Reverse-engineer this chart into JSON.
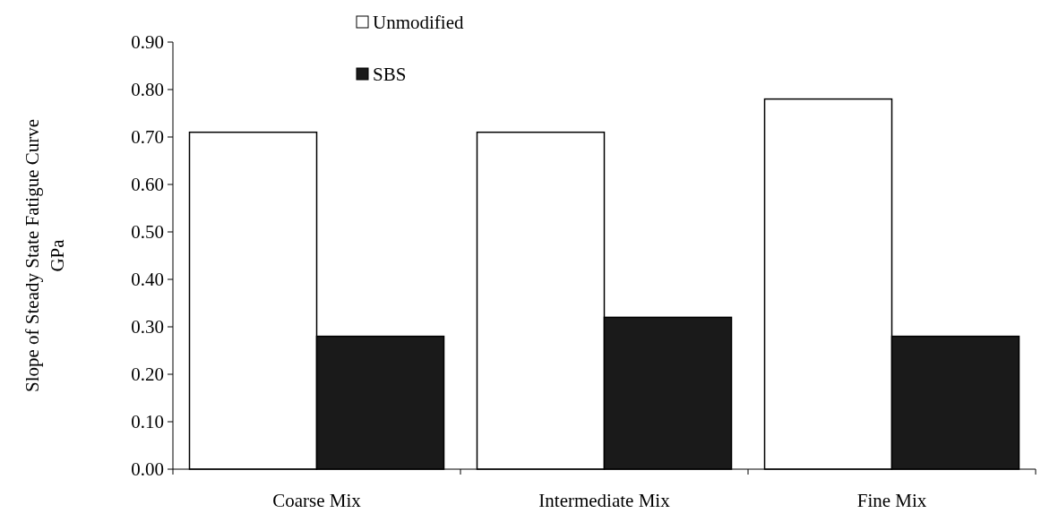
{
  "chart_data": {
    "type": "bar",
    "ylabel": "Slope of Steady State Fatigue Curve\nGPa",
    "categories": [
      "Coarse Mix",
      "Intermediate Mix",
      "Fine Mix"
    ],
    "series": [
      {
        "name": "Unmodified",
        "color": "#ffffff",
        "values": [
          0.71,
          0.71,
          0.78
        ]
      },
      {
        "name": "SBS",
        "color": "#1a1a1a",
        "values": [
          0.28,
          0.32,
          0.28
        ]
      }
    ],
    "ylim": [
      0,
      0.9
    ],
    "yticks": [
      {
        "value": 0,
        "label": "0.00"
      },
      {
        "value": 0.1,
        "label": "0.10"
      },
      {
        "value": 0.2,
        "label": "0.20"
      },
      {
        "value": 0.3,
        "label": "0.30"
      },
      {
        "value": 0.4,
        "label": "0.40"
      },
      {
        "value": 0.5,
        "label": "0.50"
      },
      {
        "value": 0.6,
        "label": "0.60"
      },
      {
        "value": 0.7,
        "label": "0.70"
      },
      {
        "value": 0.8,
        "label": "0.80"
      },
      {
        "value": 0.9,
        "label": "0.90"
      }
    ],
    "grid": false,
    "legend": "top"
  }
}
